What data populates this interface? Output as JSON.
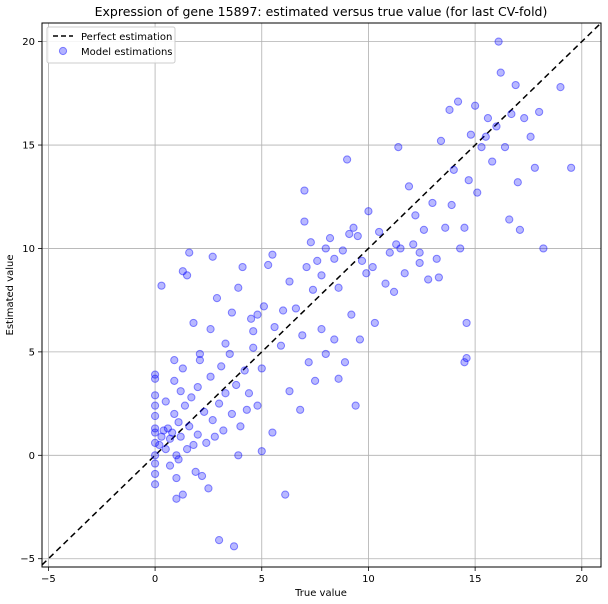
{
  "chart_data": {
    "type": "scatter",
    "title": "Expression of gene 15897: estimated versus true value (for last CV-fold)",
    "xlabel": "True value",
    "ylabel": "Estimated value",
    "xlim": [
      -5.3,
      20.9
    ],
    "ylim": [
      -5.4,
      20.9
    ],
    "xticks": [
      -5,
      0,
      5,
      10,
      15,
      20
    ],
    "yticks": [
      -5,
      0,
      5,
      10,
      15,
      20
    ],
    "grid": true,
    "legend_position": "top-left",
    "reference_line": {
      "name": "Perfect estimation",
      "style": "dashed",
      "color": "#000000"
    },
    "colors": {
      "points": "#0000ff",
      "reference": "#000000",
      "grid": "#b0b0b0"
    },
    "series": [
      {
        "name": "Model estimations",
        "points": [
          [
            0.0,
            3.9
          ],
          [
            0.0,
            3.7
          ],
          [
            0.0,
            2.9
          ],
          [
            0.0,
            2.4
          ],
          [
            0.0,
            1.9
          ],
          [
            0.0,
            1.3
          ],
          [
            0.0,
            1.1
          ],
          [
            0.0,
            0.6
          ],
          [
            0.0,
            0.0
          ],
          [
            0.0,
            -0.4
          ],
          [
            0.0,
            -0.9
          ],
          [
            0.0,
            -1.4
          ],
          [
            0.2,
            0.5
          ],
          [
            0.3,
            0.9
          ],
          [
            0.4,
            1.2
          ],
          [
            0.5,
            0.3
          ],
          [
            0.5,
            2.6
          ],
          [
            0.6,
            1.3
          ],
          [
            0.7,
            0.8
          ],
          [
            0.7,
            -0.5
          ],
          [
            0.8,
            1.1
          ],
          [
            0.9,
            3.6
          ],
          [
            0.9,
            2.0
          ],
          [
            1.0,
            0.0
          ],
          [
            1.0,
            -1.1
          ],
          [
            1.0,
            -2.1
          ],
          [
            1.1,
            1.6
          ],
          [
            1.1,
            -0.2
          ],
          [
            1.2,
            3.1
          ],
          [
            1.2,
            0.9
          ],
          [
            1.3,
            -1.9
          ],
          [
            1.3,
            4.2
          ],
          [
            1.4,
            2.4
          ],
          [
            1.5,
            0.3
          ],
          [
            1.6,
            1.4
          ],
          [
            1.7,
            2.8
          ],
          [
            1.8,
            0.5
          ],
          [
            1.9,
            -0.8
          ],
          [
            2.0,
            3.3
          ],
          [
            2.0,
            1.0
          ],
          [
            2.1,
            4.6
          ],
          [
            2.2,
            -1.0
          ],
          [
            2.3,
            2.1
          ],
          [
            2.4,
            0.6
          ],
          [
            2.5,
            -1.6
          ],
          [
            2.6,
            3.8
          ],
          [
            2.7,
            1.7
          ],
          [
            2.8,
            0.9
          ],
          [
            3.0,
            2.5
          ],
          [
            3.1,
            4.3
          ],
          [
            3.2,
            1.2
          ],
          [
            3.3,
            3.0
          ],
          [
            3.5,
            4.9
          ],
          [
            3.6,
            2.0
          ],
          [
            3.8,
            3.4
          ],
          [
            4.0,
            1.4
          ],
          [
            4.2,
            4.1
          ],
          [
            4.4,
            3.0
          ],
          [
            4.6,
            5.2
          ],
          [
            4.8,
            2.4
          ],
          [
            0.3,
            8.2
          ],
          [
            0.9,
            4.6
          ],
          [
            1.3,
            8.9
          ],
          [
            1.5,
            8.7
          ],
          [
            1.6,
            9.8
          ],
          [
            1.8,
            6.4
          ],
          [
            2.1,
            4.9
          ],
          [
            2.6,
            6.1
          ],
          [
            2.7,
            9.6
          ],
          [
            2.9,
            7.6
          ],
          [
            3.3,
            5.4
          ],
          [
            3.6,
            6.9
          ],
          [
            3.9,
            8.1
          ],
          [
            4.1,
            9.1
          ],
          [
            4.5,
            6.6
          ],
          [
            4.6,
            6.0
          ],
          [
            4.8,
            6.8
          ],
          [
            5.0,
            4.2
          ],
          [
            5.1,
            7.2
          ],
          [
            5.3,
            9.2
          ],
          [
            5.5,
            9.7
          ],
          [
            5.6,
            6.2
          ],
          [
            5.9,
            5.3
          ],
          [
            6.0,
            7.0
          ],
          [
            6.3,
            8.4
          ],
          [
            6.6,
            7.1
          ],
          [
            6.9,
            5.8
          ],
          [
            7.1,
            9.1
          ],
          [
            7.3,
            10.3
          ],
          [
            7.4,
            8.0
          ],
          [
            3.7,
            -4.4
          ],
          [
            3.0,
            -4.1
          ],
          [
            6.1,
            -1.9
          ],
          [
            5.0,
            0.2
          ],
          [
            3.9,
            0.0
          ],
          [
            4.3,
            2.2
          ],
          [
            5.5,
            1.1
          ],
          [
            6.3,
            3.1
          ],
          [
            6.8,
            2.2
          ],
          [
            7.2,
            4.5
          ],
          [
            7.5,
            3.6
          ],
          [
            7.8,
            6.1
          ],
          [
            8.0,
            4.9
          ],
          [
            8.4,
            5.6
          ],
          [
            8.6,
            3.7
          ],
          [
            8.9,
            4.5
          ],
          [
            9.2,
            6.8
          ],
          [
            9.4,
            2.4
          ],
          [
            9.6,
            5.6
          ],
          [
            9.9,
            8.8
          ],
          [
            7.0,
            11.3
          ],
          [
            7.0,
            12.8
          ],
          [
            7.6,
            9.4
          ],
          [
            7.8,
            8.7
          ],
          [
            8.0,
            10.0
          ],
          [
            8.2,
            10.5
          ],
          [
            8.4,
            9.5
          ],
          [
            8.6,
            8.1
          ],
          [
            8.8,
            9.9
          ],
          [
            9.0,
            14.3
          ],
          [
            9.1,
            10.7
          ],
          [
            9.3,
            11.0
          ],
          [
            9.5,
            10.6
          ],
          [
            9.7,
            9.4
          ],
          [
            10.0,
            11.8
          ],
          [
            10.2,
            9.1
          ],
          [
            10.3,
            6.4
          ],
          [
            10.5,
            10.8
          ],
          [
            10.8,
            8.3
          ],
          [
            11.0,
            9.8
          ],
          [
            11.2,
            7.9
          ],
          [
            11.4,
            14.9
          ],
          [
            11.5,
            10.0
          ],
          [
            11.7,
            8.8
          ],
          [
            11.9,
            13.0
          ],
          [
            12.1,
            10.2
          ],
          [
            12.2,
            11.6
          ],
          [
            12.4,
            9.3
          ],
          [
            12.6,
            10.9
          ],
          [
            12.8,
            8.5
          ],
          [
            13.0,
            12.2
          ],
          [
            13.2,
            9.5
          ],
          [
            13.4,
            15.2
          ],
          [
            13.6,
            11.0
          ],
          [
            13.8,
            16.7
          ],
          [
            13.9,
            12.1
          ],
          [
            14.0,
            13.8
          ],
          [
            14.2,
            17.1
          ],
          [
            14.3,
            10.0
          ],
          [
            14.5,
            11.0
          ],
          [
            14.6,
            6.4
          ],
          [
            14.7,
            13.3
          ],
          [
            14.8,
            15.5
          ],
          [
            15.0,
            16.9
          ],
          [
            15.1,
            12.7
          ],
          [
            15.3,
            14.9
          ],
          [
            15.5,
            15.4
          ],
          [
            15.6,
            16.3
          ],
          [
            15.8,
            14.2
          ],
          [
            16.0,
            15.9
          ],
          [
            16.1,
            20.0
          ],
          [
            16.2,
            18.5
          ],
          [
            16.4,
            14.9
          ],
          [
            16.6,
            11.4
          ],
          [
            16.7,
            16.5
          ],
          [
            16.9,
            17.9
          ],
          [
            17.0,
            13.2
          ],
          [
            17.1,
            10.9
          ],
          [
            17.3,
            16.3
          ],
          [
            17.6,
            15.4
          ],
          [
            17.8,
            13.9
          ],
          [
            18.0,
            16.6
          ],
          [
            18.2,
            10.0
          ],
          [
            19.0,
            17.8
          ],
          [
            19.5,
            13.9
          ],
          [
            14.5,
            4.5
          ],
          [
            14.6,
            4.7
          ],
          [
            11.3,
            10.2
          ],
          [
            12.4,
            9.8
          ],
          [
            13.3,
            8.6
          ]
        ]
      }
    ]
  }
}
